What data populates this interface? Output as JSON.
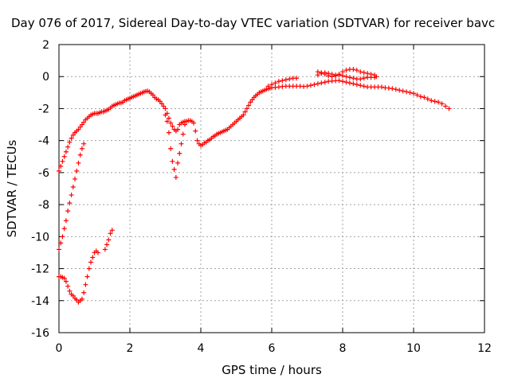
{
  "chart_data": {
    "type": "scatter",
    "title": "Day 076 of 2017, Sidereal Day-to-day VTEC variation (SDTVAR) for receiver bavc",
    "xlabel": "GPS time / hours",
    "ylabel": "SDTVAR / TECUs",
    "xlim": [
      0,
      12
    ],
    "ylim": [
      -16,
      2
    ],
    "xticks": [
      "0",
      "2",
      "4",
      "6",
      "8",
      "10",
      "12"
    ],
    "yticks": [
      "2",
      "0",
      "-2",
      "-4",
      "-6",
      "-8",
      "-10",
      "-12",
      "-14",
      "-16"
    ],
    "grid": true,
    "marker": "+",
    "color": "#ff0000",
    "series": [
      {
        "name": "main",
        "points": [
          [
            0.0,
            -5.9
          ],
          [
            0.05,
            -5.6
          ],
          [
            0.1,
            -5.3
          ],
          [
            0.15,
            -5.0
          ],
          [
            0.2,
            -4.7
          ],
          [
            0.25,
            -4.4
          ],
          [
            0.3,
            -4.1
          ],
          [
            0.35,
            -3.85
          ],
          [
            0.4,
            -3.65
          ],
          [
            0.45,
            -3.5
          ],
          [
            0.5,
            -3.4
          ],
          [
            0.55,
            -3.3
          ],
          [
            0.6,
            -3.15
          ],
          [
            0.65,
            -3.0
          ],
          [
            0.7,
            -2.85
          ],
          [
            0.75,
            -2.7
          ],
          [
            0.8,
            -2.6
          ],
          [
            0.85,
            -2.5
          ],
          [
            0.9,
            -2.4
          ],
          [
            0.95,
            -2.35
          ],
          [
            1.0,
            -2.3
          ],
          [
            1.05,
            -2.3
          ],
          [
            1.1,
            -2.3
          ],
          [
            1.15,
            -2.25
          ],
          [
            1.2,
            -2.2
          ],
          [
            1.25,
            -2.2
          ],
          [
            1.3,
            -2.15
          ],
          [
            1.35,
            -2.1
          ],
          [
            1.4,
            -2.05
          ],
          [
            1.45,
            -1.95
          ],
          [
            1.5,
            -1.85
          ],
          [
            1.55,
            -1.8
          ],
          [
            1.6,
            -1.75
          ],
          [
            1.65,
            -1.7
          ],
          [
            1.7,
            -1.65
          ],
          [
            1.75,
            -1.65
          ],
          [
            1.8,
            -1.6
          ],
          [
            1.85,
            -1.5
          ],
          [
            1.9,
            -1.45
          ],
          [
            1.95,
            -1.4
          ],
          [
            2.0,
            -1.35
          ],
          [
            2.05,
            -1.3
          ],
          [
            2.1,
            -1.25
          ],
          [
            2.15,
            -1.2
          ],
          [
            2.2,
            -1.15
          ],
          [
            2.25,
            -1.1
          ],
          [
            2.3,
            -1.05
          ],
          [
            2.35,
            -1.0
          ],
          [
            2.4,
            -0.95
          ],
          [
            2.45,
            -0.92
          ],
          [
            2.5,
            -0.9
          ],
          [
            2.55,
            -0.95
          ],
          [
            2.6,
            -1.05
          ],
          [
            2.65,
            -1.15
          ],
          [
            2.7,
            -1.3
          ],
          [
            2.75,
            -1.4
          ],
          [
            2.8,
            -1.45
          ],
          [
            2.85,
            -1.55
          ],
          [
            2.9,
            -1.7
          ],
          [
            2.95,
            -1.85
          ],
          [
            3.0,
            -2.0
          ],
          [
            3.05,
            -2.3
          ],
          [
            3.1,
            -2.6
          ],
          [
            3.15,
            -2.9
          ],
          [
            3.2,
            -3.1
          ],
          [
            3.25,
            -3.3
          ],
          [
            3.3,
            -3.4
          ],
          [
            3.35,
            -3.3
          ],
          [
            3.4,
            -3.0
          ],
          [
            3.45,
            -2.9
          ],
          [
            3.5,
            -2.85
          ],
          [
            3.55,
            -2.8
          ],
          [
            3.6,
            -2.8
          ],
          [
            3.65,
            -2.75
          ],
          [
            3.7,
            -2.75
          ],
          [
            3.75,
            -2.8
          ],
          [
            3.8,
            -2.9
          ],
          [
            3.85,
            -3.4
          ],
          [
            3.9,
            -4.0
          ],
          [
            3.95,
            -4.2
          ],
          [
            4.0,
            -4.3
          ],
          [
            4.05,
            -4.25
          ],
          [
            4.1,
            -4.15
          ],
          [
            4.15,
            -4.1
          ],
          [
            4.2,
            -4.0
          ],
          [
            4.25,
            -3.95
          ],
          [
            4.3,
            -3.85
          ],
          [
            4.35,
            -3.75
          ],
          [
            4.4,
            -3.7
          ],
          [
            4.45,
            -3.6
          ],
          [
            4.5,
            -3.55
          ],
          [
            4.55,
            -3.5
          ],
          [
            4.6,
            -3.45
          ],
          [
            4.65,
            -3.4
          ],
          [
            4.7,
            -3.35
          ],
          [
            4.75,
            -3.3
          ],
          [
            4.8,
            -3.2
          ],
          [
            4.85,
            -3.1
          ],
          [
            4.9,
            -3.0
          ],
          [
            4.95,
            -2.9
          ],
          [
            5.0,
            -2.8
          ],
          [
            5.05,
            -2.7
          ],
          [
            5.1,
            -2.6
          ],
          [
            5.15,
            -2.5
          ],
          [
            5.2,
            -2.4
          ],
          [
            5.25,
            -2.2
          ],
          [
            5.3,
            -2.0
          ],
          [
            5.35,
            -1.8
          ],
          [
            5.4,
            -1.6
          ],
          [
            5.45,
            -1.45
          ],
          [
            5.5,
            -1.3
          ],
          [
            5.55,
            -1.2
          ],
          [
            5.6,
            -1.1
          ],
          [
            5.65,
            -1.0
          ],
          [
            5.7,
            -0.95
          ],
          [
            5.75,
            -0.9
          ],
          [
            5.8,
            -0.85
          ],
          [
            5.85,
            -0.8
          ],
          [
            5.9,
            -0.75
          ],
          [
            5.95,
            -0.72
          ],
          [
            6.0,
            -0.7
          ],
          [
            6.1,
            -0.68
          ],
          [
            6.2,
            -0.65
          ],
          [
            6.3,
            -0.62
          ],
          [
            6.4,
            -0.6
          ],
          [
            6.5,
            -0.6
          ],
          [
            6.6,
            -0.6
          ],
          [
            6.7,
            -0.6
          ],
          [
            6.8,
            -0.6
          ],
          [
            6.9,
            -0.62
          ],
          [
            7.0,
            -0.6
          ],
          [
            7.1,
            -0.55
          ],
          [
            7.2,
            -0.5
          ],
          [
            7.3,
            -0.45
          ],
          [
            7.4,
            -0.4
          ],
          [
            7.5,
            -0.35
          ],
          [
            7.6,
            -0.3
          ],
          [
            7.7,
            -0.28
          ],
          [
            7.8,
            -0.26
          ],
          [
            7.9,
            -0.25
          ],
          [
            8.0,
            -0.3
          ],
          [
            8.1,
            -0.35
          ],
          [
            8.2,
            -0.4
          ],
          [
            8.3,
            -0.45
          ],
          [
            8.4,
            -0.5
          ],
          [
            8.5,
            -0.55
          ],
          [
            8.6,
            -0.6
          ],
          [
            8.7,
            -0.65
          ],
          [
            8.8,
            -0.65
          ],
          [
            8.9,
            -0.65
          ],
          [
            9.0,
            -0.65
          ],
          [
            9.1,
            -0.65
          ],
          [
            9.2,
            -0.7
          ],
          [
            9.3,
            -0.72
          ],
          [
            9.4,
            -0.75
          ],
          [
            9.5,
            -0.8
          ],
          [
            9.6,
            -0.85
          ],
          [
            9.7,
            -0.9
          ],
          [
            9.8,
            -0.95
          ],
          [
            9.9,
            -1.0
          ],
          [
            10.0,
            -1.05
          ],
          [
            10.1,
            -1.15
          ],
          [
            10.2,
            -1.25
          ],
          [
            10.3,
            -1.3
          ],
          [
            10.4,
            -1.4
          ],
          [
            10.5,
            -1.5
          ],
          [
            10.6,
            -1.55
          ],
          [
            10.7,
            -1.6
          ],
          [
            10.8,
            -1.7
          ],
          [
            10.9,
            -1.85
          ],
          [
            11.0,
            -2.0
          ]
        ]
      },
      {
        "name": "arc-segment",
        "points": [
          [
            5.9,
            -0.6
          ],
          [
            6.0,
            -0.5
          ],
          [
            6.1,
            -0.4
          ],
          [
            6.2,
            -0.3
          ],
          [
            6.3,
            -0.25
          ],
          [
            6.4,
            -0.2
          ],
          [
            6.5,
            -0.15
          ],
          [
            6.6,
            -0.1
          ],
          [
            6.7,
            -0.1
          ],
          [
            7.3,
            0.3
          ],
          [
            7.4,
            0.25
          ],
          [
            7.5,
            0.15
          ],
          [
            7.6,
            0.05
          ],
          [
            7.7,
            0.0
          ],
          [
            7.8,
            0.05
          ],
          [
            7.9,
            0.15
          ],
          [
            8.0,
            0.3
          ],
          [
            8.1,
            0.4
          ],
          [
            8.2,
            0.45
          ],
          [
            8.3,
            0.45
          ],
          [
            8.4,
            0.4
          ],
          [
            8.5,
            0.3
          ],
          [
            8.6,
            0.25
          ],
          [
            8.7,
            0.2
          ],
          [
            8.8,
            0.15
          ],
          [
            8.9,
            0.1
          ],
          [
            8.95,
            0.0
          ],
          [
            7.3,
            0.1
          ],
          [
            7.4,
            0.2
          ],
          [
            7.5,
            0.25
          ],
          [
            7.6,
            0.2
          ],
          [
            7.7,
            0.15
          ],
          [
            7.8,
            0.1
          ],
          [
            7.9,
            0.1
          ],
          [
            8.0,
            0.05
          ],
          [
            8.1,
            0.0
          ],
          [
            8.2,
            -0.05
          ],
          [
            8.3,
            -0.1
          ],
          [
            8.4,
            -0.15
          ],
          [
            8.5,
            -0.15
          ],
          [
            8.6,
            -0.1
          ],
          [
            8.7,
            -0.05
          ],
          [
            8.8,
            -0.05
          ],
          [
            8.9,
            -0.05
          ]
        ]
      },
      {
        "name": "dip-around-3h",
        "points": [
          [
            3.0,
            -2.4
          ],
          [
            3.05,
            -2.8
          ],
          [
            3.1,
            -3.5
          ],
          [
            3.15,
            -4.5
          ],
          [
            3.2,
            -5.3
          ],
          [
            3.25,
            -5.8
          ],
          [
            3.3,
            -6.3
          ],
          [
            3.35,
            -5.4
          ],
          [
            3.4,
            -4.8
          ],
          [
            3.45,
            -4.2
          ],
          [
            3.5,
            -3.6
          ],
          [
            3.55,
            -3.0
          ]
        ]
      },
      {
        "name": "lower-branch-1",
        "points": [
          [
            0.0,
            -10.8
          ],
          [
            0.05,
            -10.4
          ],
          [
            0.1,
            -10.0
          ],
          [
            0.15,
            -9.5
          ],
          [
            0.2,
            -9.0
          ],
          [
            0.25,
            -8.4
          ],
          [
            0.3,
            -7.9
          ],
          [
            0.35,
            -7.4
          ],
          [
            0.4,
            -6.9
          ],
          [
            0.45,
            -6.4
          ],
          [
            0.5,
            -5.9
          ],
          [
            0.55,
            -5.4
          ],
          [
            0.6,
            -4.9
          ],
          [
            0.65,
            -4.5
          ],
          [
            0.7,
            -4.2
          ]
        ]
      },
      {
        "name": "lower-branch-2",
        "points": [
          [
            0.0,
            -12.5
          ],
          [
            0.05,
            -12.5
          ],
          [
            0.1,
            -12.55
          ],
          [
            0.15,
            -12.6
          ],
          [
            0.2,
            -12.8
          ],
          [
            0.25,
            -13.1
          ],
          [
            0.3,
            -13.4
          ],
          [
            0.35,
            -13.6
          ],
          [
            0.4,
            -13.7
          ],
          [
            0.45,
            -13.85
          ],
          [
            0.5,
            -13.95
          ],
          [
            0.55,
            -14.1
          ],
          [
            0.6,
            -14.0
          ],
          [
            0.65,
            -13.9
          ],
          [
            0.7,
            -13.5
          ],
          [
            0.75,
            -13.0
          ],
          [
            0.8,
            -12.5
          ],
          [
            0.85,
            -12.0
          ],
          [
            0.9,
            -11.6
          ],
          [
            0.95,
            -11.3
          ],
          [
            1.0,
            -11.0
          ],
          [
            1.05,
            -10.9
          ],
          [
            1.1,
            -11.0
          ]
        ]
      },
      {
        "name": "lower-branch-3",
        "points": [
          [
            1.3,
            -10.8
          ],
          [
            1.35,
            -10.5
          ],
          [
            1.4,
            -10.2
          ],
          [
            1.45,
            -9.8
          ],
          [
            1.5,
            -9.6
          ]
        ]
      }
    ]
  }
}
